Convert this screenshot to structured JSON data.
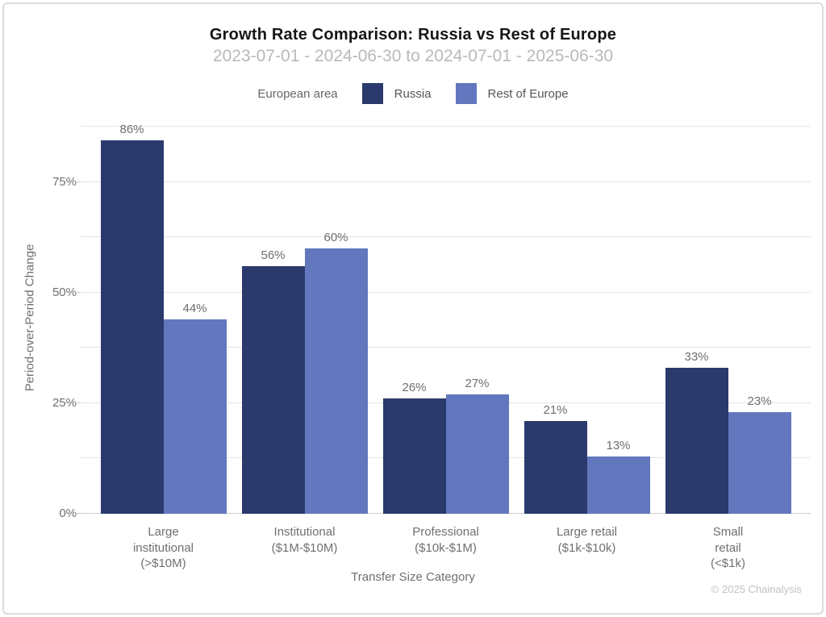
{
  "header": {
    "title": "Growth Rate Comparison: Russia vs Rest of Europe",
    "subtitle": "2023-07-01 - 2024-06-30 to 2024-07-01 - 2025-06-30"
  },
  "legend": {
    "title": "European area",
    "items": [
      {
        "label": "Russia",
        "color": "#2b3a6c"
      },
      {
        "label": "Rest of Europe",
        "color": "#6277bd"
      }
    ]
  },
  "chart_data": {
    "type": "bar",
    "title": "Growth Rate Comparison: Russia vs Rest of Europe",
    "subtitle": "2023-07-01 - 2024-06-30 to 2024-07-01 - 2025-06-30",
    "xlabel": "Transfer Size Category",
    "ylabel": "Period-over-Period Change",
    "categories": [
      "Large institutional (>$10M)",
      "Institutional ($1M-$10M)",
      "Professional ($10k-$1M)",
      "Large retail ($1k-$10k)",
      "Small retail (<$1k)"
    ],
    "category_lines": [
      [
        "Large",
        "institutional",
        "(>$10M)"
      ],
      [
        "Institutional",
        "($1M-$10M)"
      ],
      [
        "Professional",
        "($10k-$1M)"
      ],
      [
        "Large retail",
        "($1k-$10k)"
      ],
      [
        "Small",
        "retail",
        "(<$1k)"
      ]
    ],
    "series": [
      {
        "name": "Russia",
        "color": "#2b3a6c",
        "values": [
          86,
          56,
          26,
          21,
          33
        ]
      },
      {
        "name": "Rest of Europe",
        "color": "#6277bd",
        "values": [
          44,
          60,
          27,
          13,
          23
        ]
      }
    ],
    "value_suffix": "%",
    "ylim": [
      0,
      88.4
    ],
    "yticks": [
      0,
      25,
      50,
      75
    ],
    "gridline_step": 12.5,
    "grid": true,
    "legend_position": "top"
  },
  "footer": {
    "copyright": "© 2025 Chainalysis"
  }
}
